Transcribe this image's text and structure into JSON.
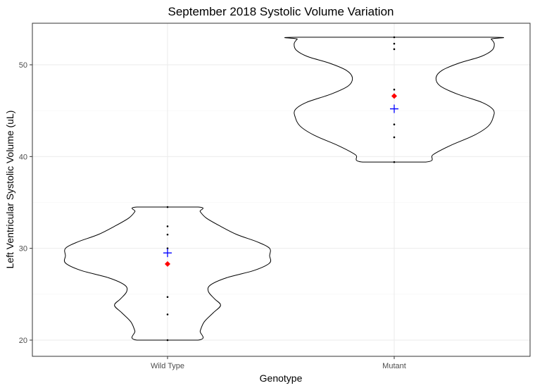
{
  "chart_data": {
    "type": "violin",
    "title": "September 2018 Systolic Volume Variation",
    "xlabel": "Genotype",
    "ylabel": "Left Ventricular Systolic Volume (uL)",
    "ylim": [
      19,
      54.8
    ],
    "yticks": [
      20,
      30,
      40,
      50
    ],
    "grid": true,
    "categories": [
      "Wild Type",
      "Mutant"
    ],
    "groups": [
      {
        "name": "Wild Type",
        "points": [
          20.0,
          22.8,
          24.7,
          28.4,
          30.0,
          31.5,
          32.4,
          34.5
        ],
        "median": 28.3,
        "mean": 29.5,
        "density": [
          [
            20.0,
            0.3
          ],
          [
            21.0,
            0.32
          ],
          [
            22.0,
            0.36
          ],
          [
            23.0,
            0.45
          ],
          [
            23.8,
            0.52
          ],
          [
            24.5,
            0.46
          ],
          [
            25.3,
            0.4
          ],
          [
            26.0,
            0.42
          ],
          [
            26.8,
            0.58
          ],
          [
            27.6,
            0.85
          ],
          [
            28.4,
            1.0
          ],
          [
            29.2,
            1.0
          ],
          [
            30.0,
            1.0
          ],
          [
            30.7,
            0.88
          ],
          [
            31.5,
            0.68
          ],
          [
            32.4,
            0.52
          ],
          [
            33.3,
            0.38
          ],
          [
            34.0,
            0.32
          ],
          [
            34.5,
            0.3
          ]
        ],
        "median_color": "#FF0000",
        "mean_color": "#0000FF"
      },
      {
        "name": "Mutant",
        "points": [
          39.4,
          42.1,
          43.5,
          46.6,
          47.3,
          51.7,
          52.3,
          53.0
        ],
        "median": 46.6,
        "mean": 45.2,
        "density": [
          [
            39.4,
            0.31
          ],
          [
            40.2,
            0.38
          ],
          [
            41.2,
            0.55
          ],
          [
            42.3,
            0.78
          ],
          [
            43.3,
            0.92
          ],
          [
            44.3,
            0.97
          ],
          [
            45.1,
            0.97
          ],
          [
            45.9,
            0.86
          ],
          [
            46.8,
            0.62
          ],
          [
            47.7,
            0.45
          ],
          [
            48.6,
            0.41
          ],
          [
            49.4,
            0.47
          ],
          [
            50.2,
            0.64
          ],
          [
            50.9,
            0.85
          ],
          [
            51.6,
            0.96
          ],
          [
            52.3,
            0.98
          ],
          [
            52.8,
            0.95
          ],
          [
            53.0,
            0.93
          ]
        ],
        "median_color": "#FF0000",
        "mean_color": "#0000FF"
      }
    ]
  }
}
